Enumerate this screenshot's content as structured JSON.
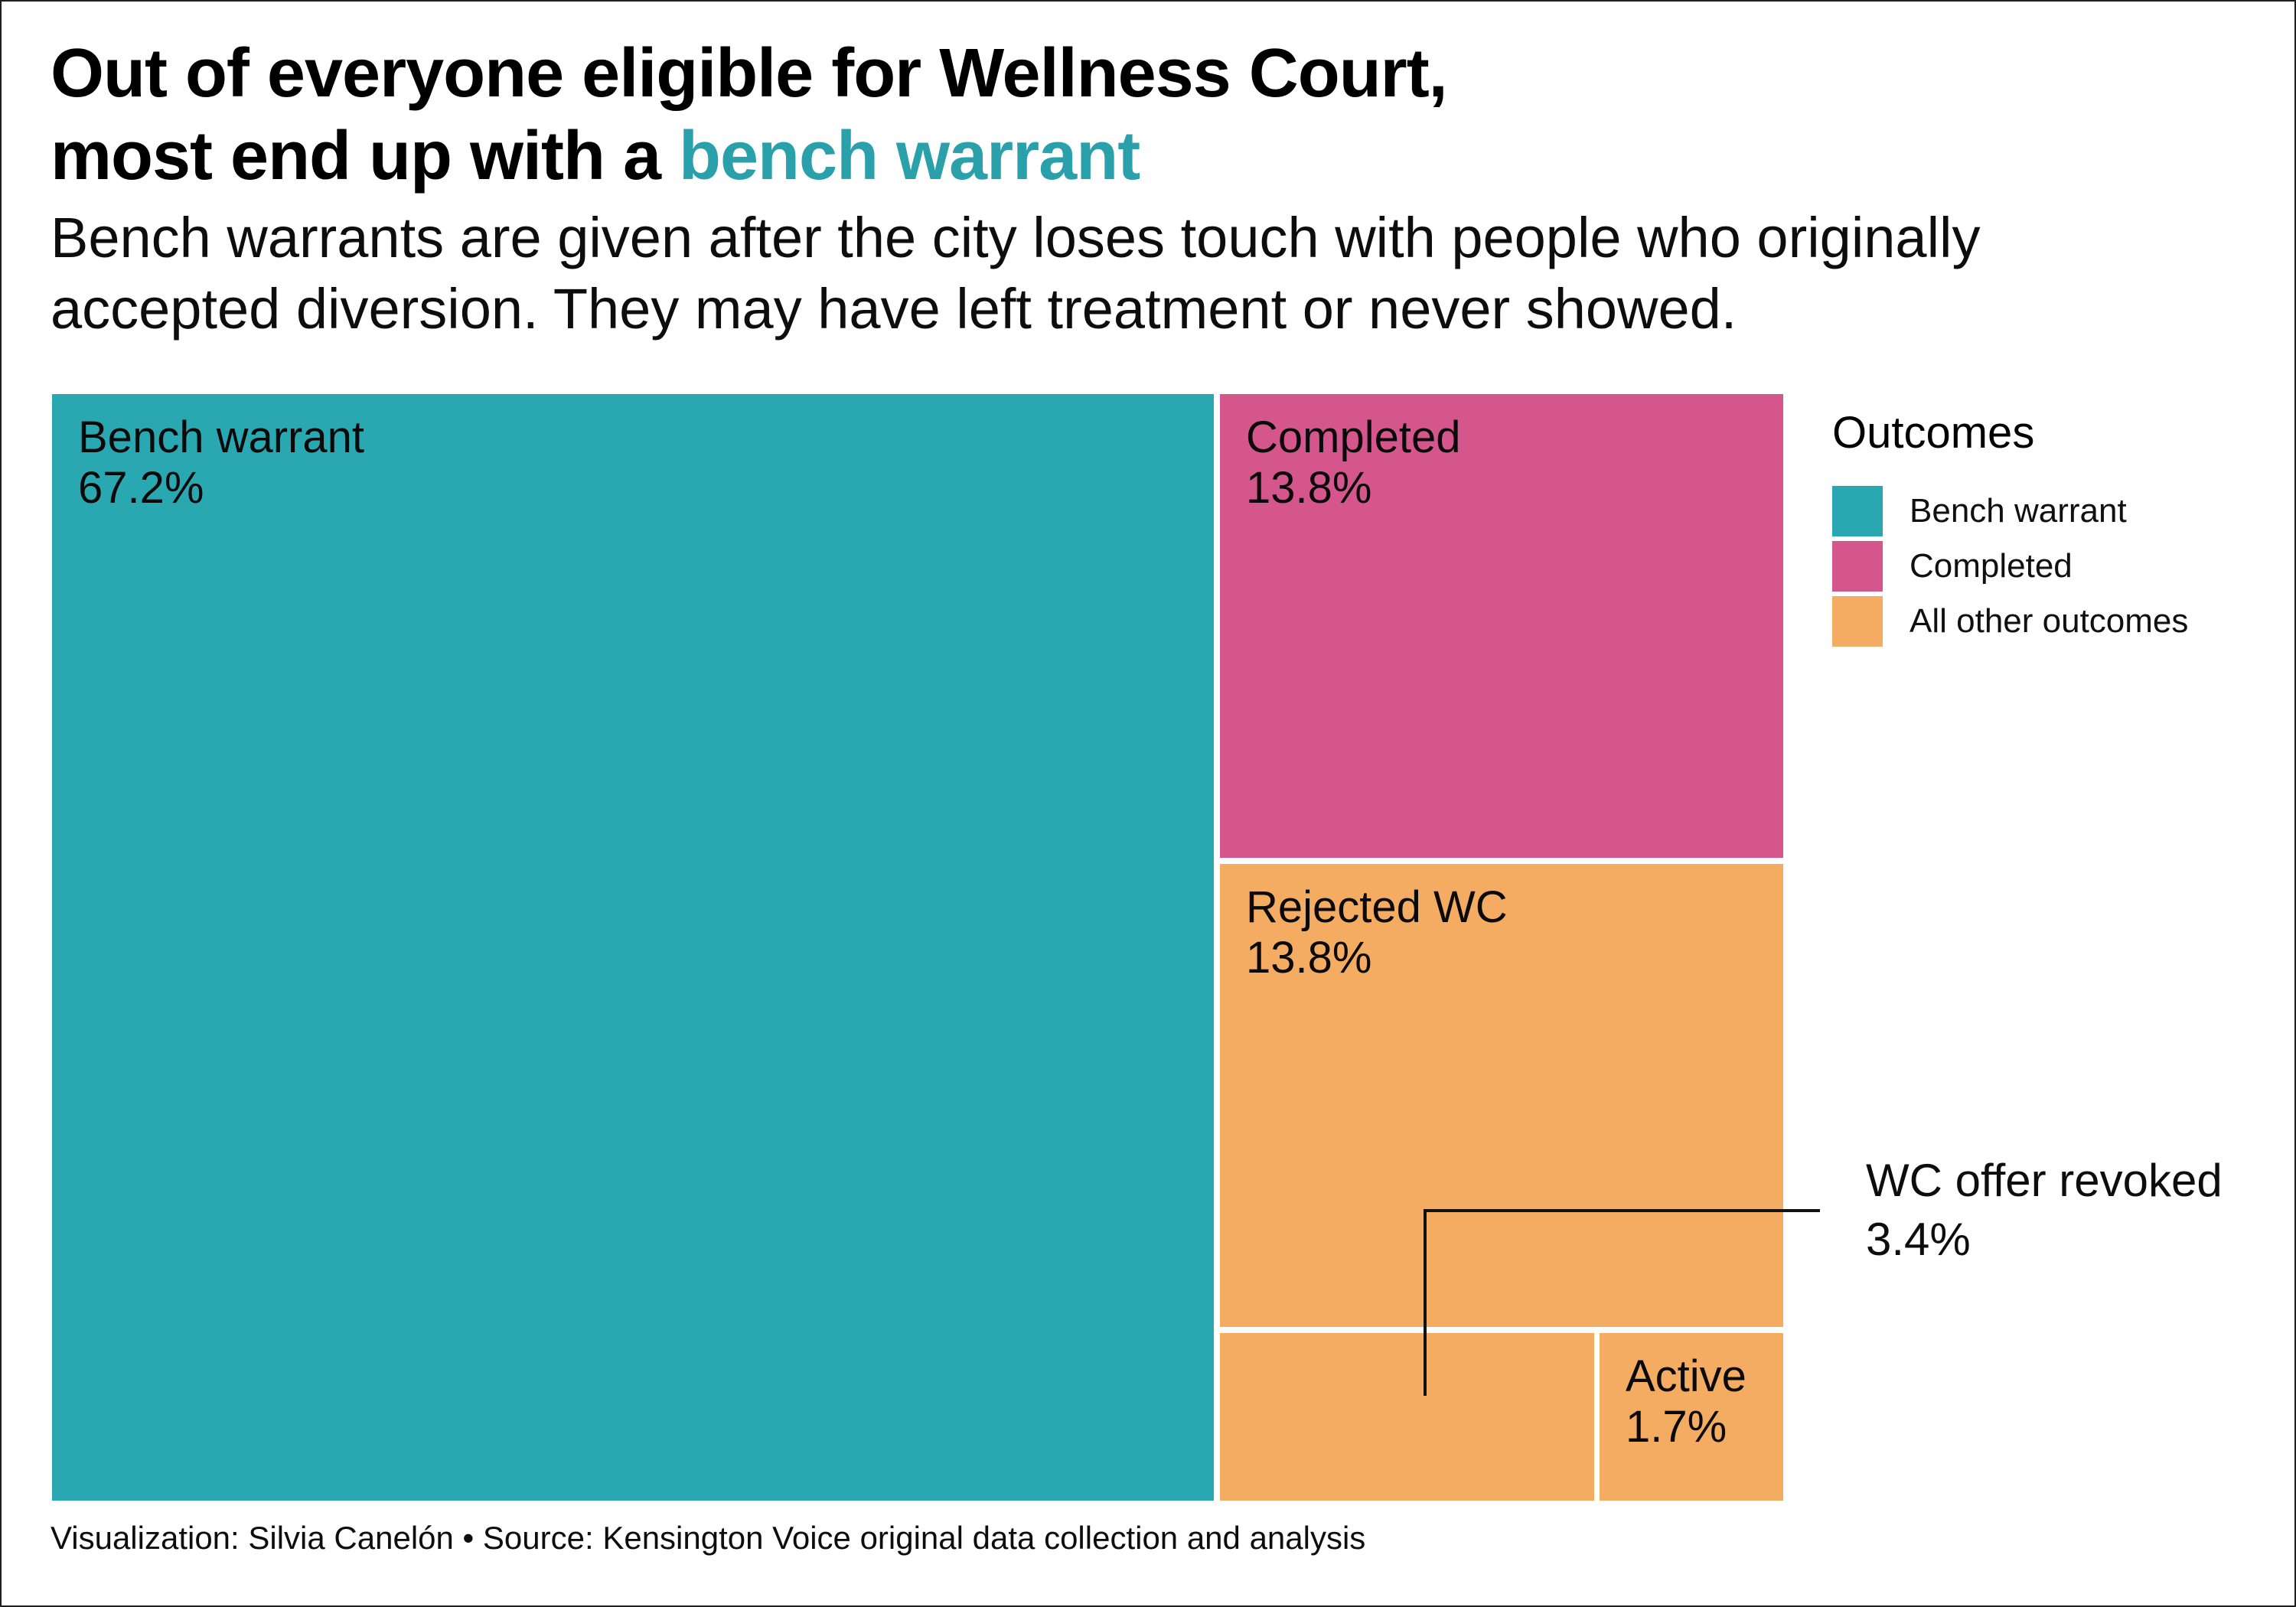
{
  "header": {
    "title_line1": "Out of everyone eligible for Wellness Court,",
    "title_line2_prefix": "most end up with a ",
    "title_line2_highlight": "bench warrant",
    "subtitle_line1": "Bench warrants are given after the city loses touch with people who originally",
    "subtitle_line2": "accepted diversion. They may have left treatment or never showed."
  },
  "chart_data": {
    "type": "treemap",
    "title": "Out of everyone eligible for Wellness Court, most end up with a bench warrant",
    "subtitle": "Bench warrants are given after the city loses touch with people who originally accepted diversion. They may have left treatment or never showed.",
    "unit": "percent of everyone eligible for Wellness Court",
    "legend_position": "right",
    "tiles": [
      {
        "label": "Bench warrant",
        "value": 67.2,
        "pct_label": "67.2%",
        "group": "Bench warrant",
        "color": "#29a8b1",
        "label_on_tile": true
      },
      {
        "label": "Completed",
        "value": 13.8,
        "pct_label": "13.8%",
        "group": "Completed",
        "color": "#d5568d",
        "label_on_tile": true
      },
      {
        "label": "Rejected WC",
        "value": 13.8,
        "pct_label": "13.8%",
        "group": "All other outcomes",
        "color": "#f4ab62",
        "label_on_tile": true
      },
      {
        "label": "WC offer revoked",
        "value": 3.4,
        "pct_label": "3.4%",
        "group": "All other outcomes",
        "color": "#f4ab62",
        "label_on_tile": false
      },
      {
        "label": "Active",
        "value": 1.7,
        "pct_label": "1.7%",
        "group": "All other outcomes",
        "color": "#f4ab62",
        "label_on_tile": true
      }
    ]
  },
  "legend": {
    "title": "Outcomes",
    "items": [
      {
        "label": "Bench warrant",
        "color": "#29a8b1"
      },
      {
        "label": "Completed",
        "color": "#d5568d"
      },
      {
        "label": "All other outcomes",
        "color": "#f4ab62"
      }
    ]
  },
  "annotation": {
    "label": "WC offer revoked",
    "value_label": "3.4%"
  },
  "footer": {
    "credit": "Visualization: Silvia Canelón • Source: Kensington Voice original data collection and analysis"
  },
  "colors": {
    "teal": "#29a8b1",
    "pink": "#d5568d",
    "orange": "#f4ab62",
    "title_highlight": "#2aa0aa",
    "text": "#0d0d0d",
    "background": "#ffffff",
    "border": "#1f1f1f",
    "annotation_line": "#111111"
  }
}
